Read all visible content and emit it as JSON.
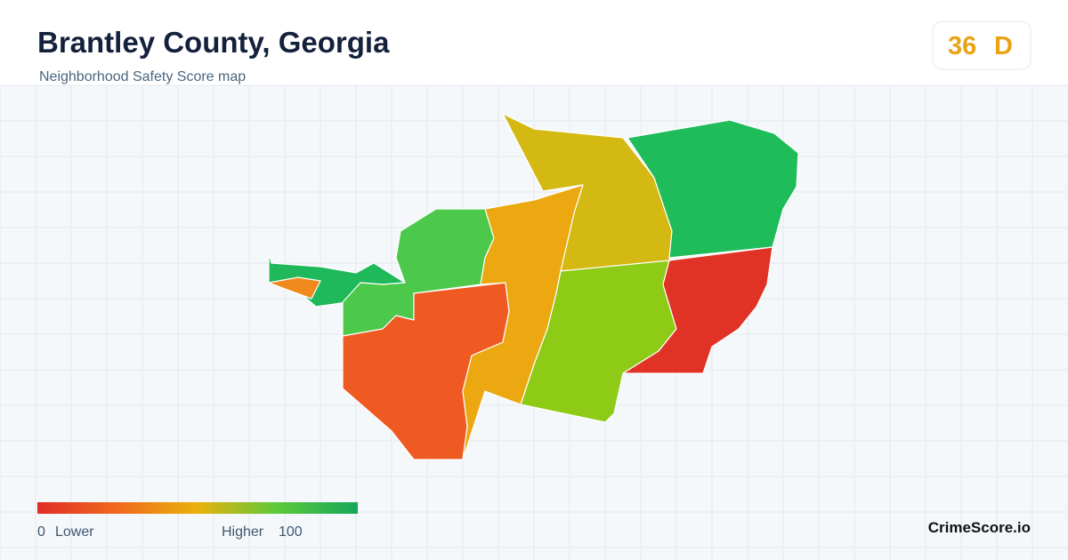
{
  "header": {
    "title": "Brantley County, Georgia",
    "subtitle": "Neighborhood Safety Score map"
  },
  "score": {
    "value": "36",
    "grade": "D"
  },
  "legend": {
    "min": "0",
    "min_label": "Lower",
    "max_label": "Higher",
    "max": "100"
  },
  "brand": "CrimeScore.io"
}
